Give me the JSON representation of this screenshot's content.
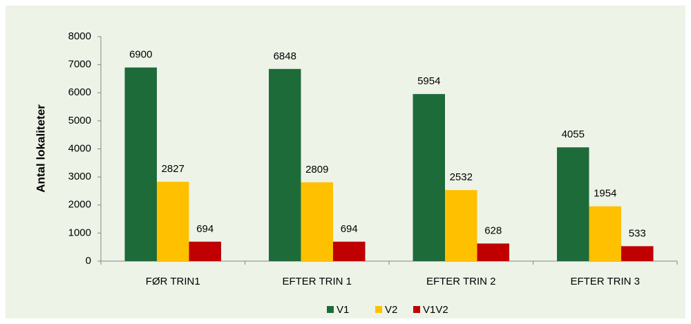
{
  "chart_data": {
    "type": "bar",
    "y_label": "Antal lokaliteter",
    "categories": [
      "FØR TRIN1",
      "EFTER TRIN 1",
      "EFTER TRIN 2",
      "EFTER TRIN 3"
    ],
    "series": [
      {
        "name": "V1",
        "color": "#1e6b3a",
        "values": [
          6900,
          6848,
          5954,
          4055
        ]
      },
      {
        "name": "V2",
        "color": "#ffc000",
        "values": [
          2827,
          2809,
          2532,
          1954
        ]
      },
      {
        "name": "V1V2",
        "color": "#c00000",
        "values": [
          694,
          694,
          628,
          533
        ]
      }
    ],
    "ylim": [
      0,
      8000
    ],
    "yticks": [
      0,
      1000,
      2000,
      3000,
      4000,
      5000,
      6000,
      7000,
      8000
    ],
    "grid": false,
    "legend": "bottom"
  }
}
